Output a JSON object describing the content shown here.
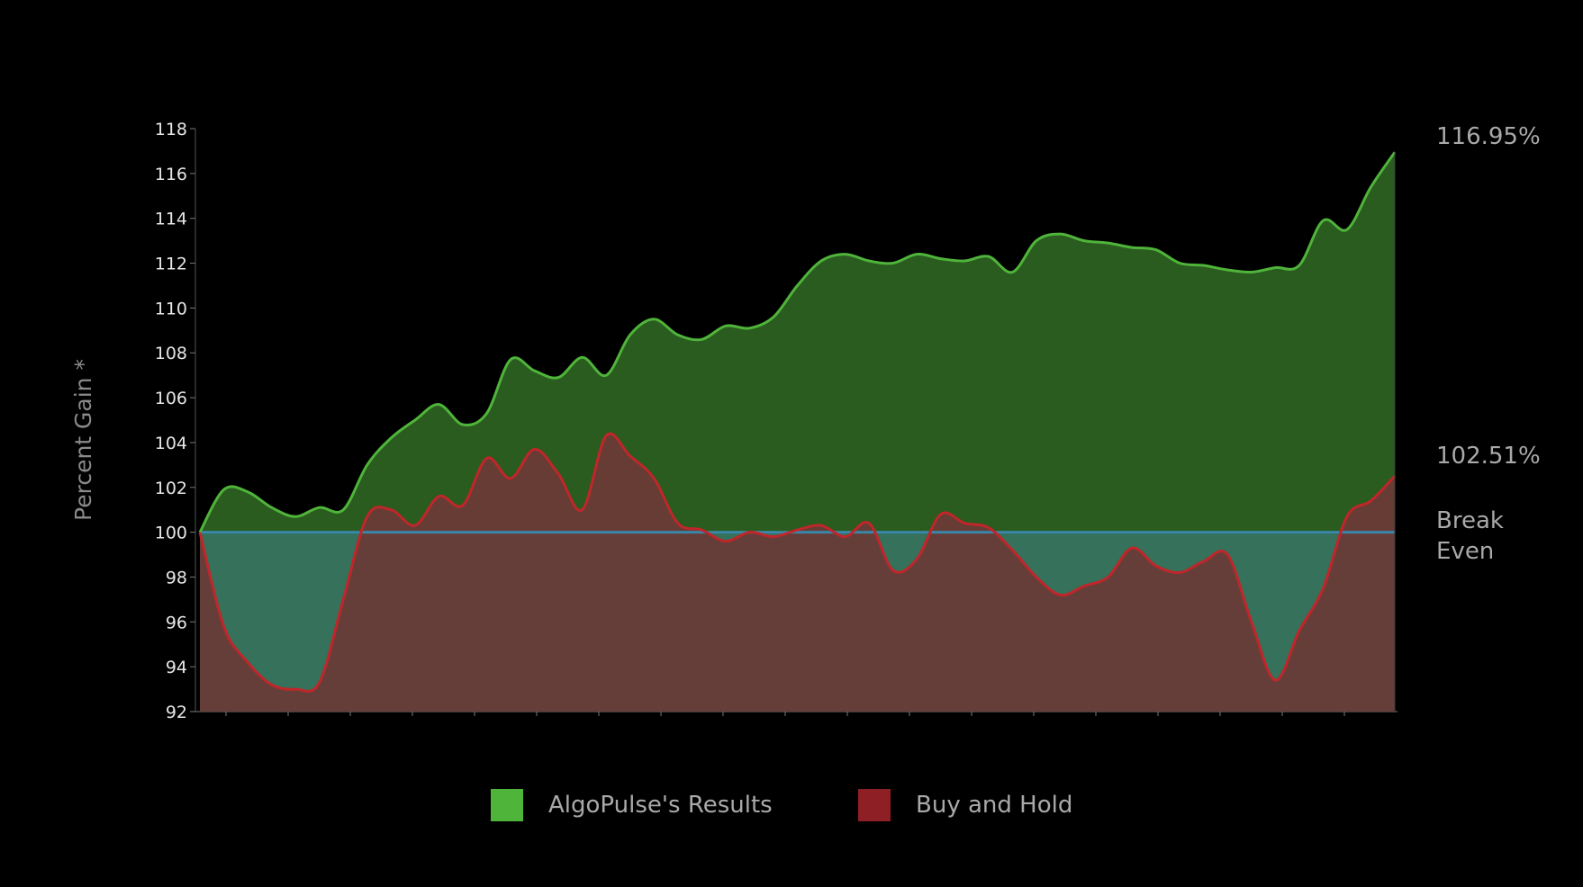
{
  "chart_data": {
    "type": "area",
    "title": "",
    "xlabel": "",
    "ylabel": "Percent Gain *",
    "ylim": [
      92,
      118
    ],
    "yticks": [
      92,
      94,
      96,
      98,
      100,
      102,
      104,
      106,
      108,
      110,
      112,
      114,
      116,
      118
    ],
    "grid": false,
    "legend_position": "bottom-center",
    "baseline": {
      "value": 100,
      "label_line1": "Break",
      "label_line2": "Even",
      "color": "#3a85a8"
    },
    "series": [
      {
        "name": "AlgoPulse's Results",
        "color": "#4fb43a",
        "fill": "#2a5b1f",
        "end_label": "116.95%",
        "x": [
          0,
          2,
          4,
          6,
          8,
          10,
          12,
          14,
          16,
          18,
          20,
          22,
          24,
          26,
          28,
          30,
          32,
          34,
          36,
          38,
          40,
          42,
          44,
          46,
          48,
          50,
          52,
          54,
          56,
          58,
          60,
          62,
          64,
          66,
          68,
          70,
          72,
          74,
          76,
          78,
          80,
          82,
          84,
          86,
          88,
          90,
          92,
          94,
          96,
          98,
          100
        ],
        "values": [
          100.0,
          101.9,
          101.8,
          101.1,
          100.7,
          101.1,
          101.0,
          103.0,
          104.2,
          105.0,
          105.7,
          104.8,
          105.3,
          107.7,
          107.2,
          106.9,
          107.8,
          107.0,
          108.8,
          109.5,
          108.8,
          108.6,
          109.2,
          109.1,
          109.6,
          111.0,
          112.1,
          112.4,
          112.1,
          112.0,
          112.4,
          112.2,
          112.1,
          112.3,
          111.6,
          113.0,
          113.3,
          113.0,
          112.9,
          112.7,
          112.6,
          112.0,
          111.9,
          111.7,
          111.6,
          111.8,
          111.9,
          113.9,
          113.5,
          115.4,
          116.95
        ]
      },
      {
        "name": "Buy and Hold",
        "color": "#c0262a",
        "fill": "#6b3a37",
        "end_label": "102.51%",
        "x": [
          0,
          2,
          4,
          6,
          8,
          10,
          12,
          14,
          16,
          18,
          20,
          22,
          24,
          26,
          28,
          30,
          32,
          34,
          36,
          38,
          40,
          42,
          44,
          46,
          48,
          50,
          52,
          54,
          56,
          58,
          60,
          62,
          64,
          66,
          68,
          70,
          72,
          74,
          76,
          78,
          80,
          82,
          84,
          86,
          88,
          90,
          92,
          94,
          96,
          98,
          100
        ],
        "values": [
          100.0,
          95.8,
          94.2,
          93.2,
          93.0,
          93.3,
          97.0,
          100.7,
          101.0,
          100.3,
          101.6,
          101.2,
          103.3,
          102.4,
          103.7,
          102.6,
          101.0,
          104.3,
          103.4,
          102.4,
          100.4,
          100.1,
          99.6,
          100.0,
          99.8,
          100.1,
          100.3,
          99.8,
          100.4,
          98.3,
          98.8,
          100.8,
          100.4,
          100.2,
          99.2,
          98.0,
          97.2,
          97.6,
          98.0,
          99.3,
          98.5,
          98.2,
          98.7,
          99.0,
          96.0,
          93.4,
          95.6,
          97.5,
          100.7,
          101.4,
          102.51
        ]
      }
    ]
  }
}
